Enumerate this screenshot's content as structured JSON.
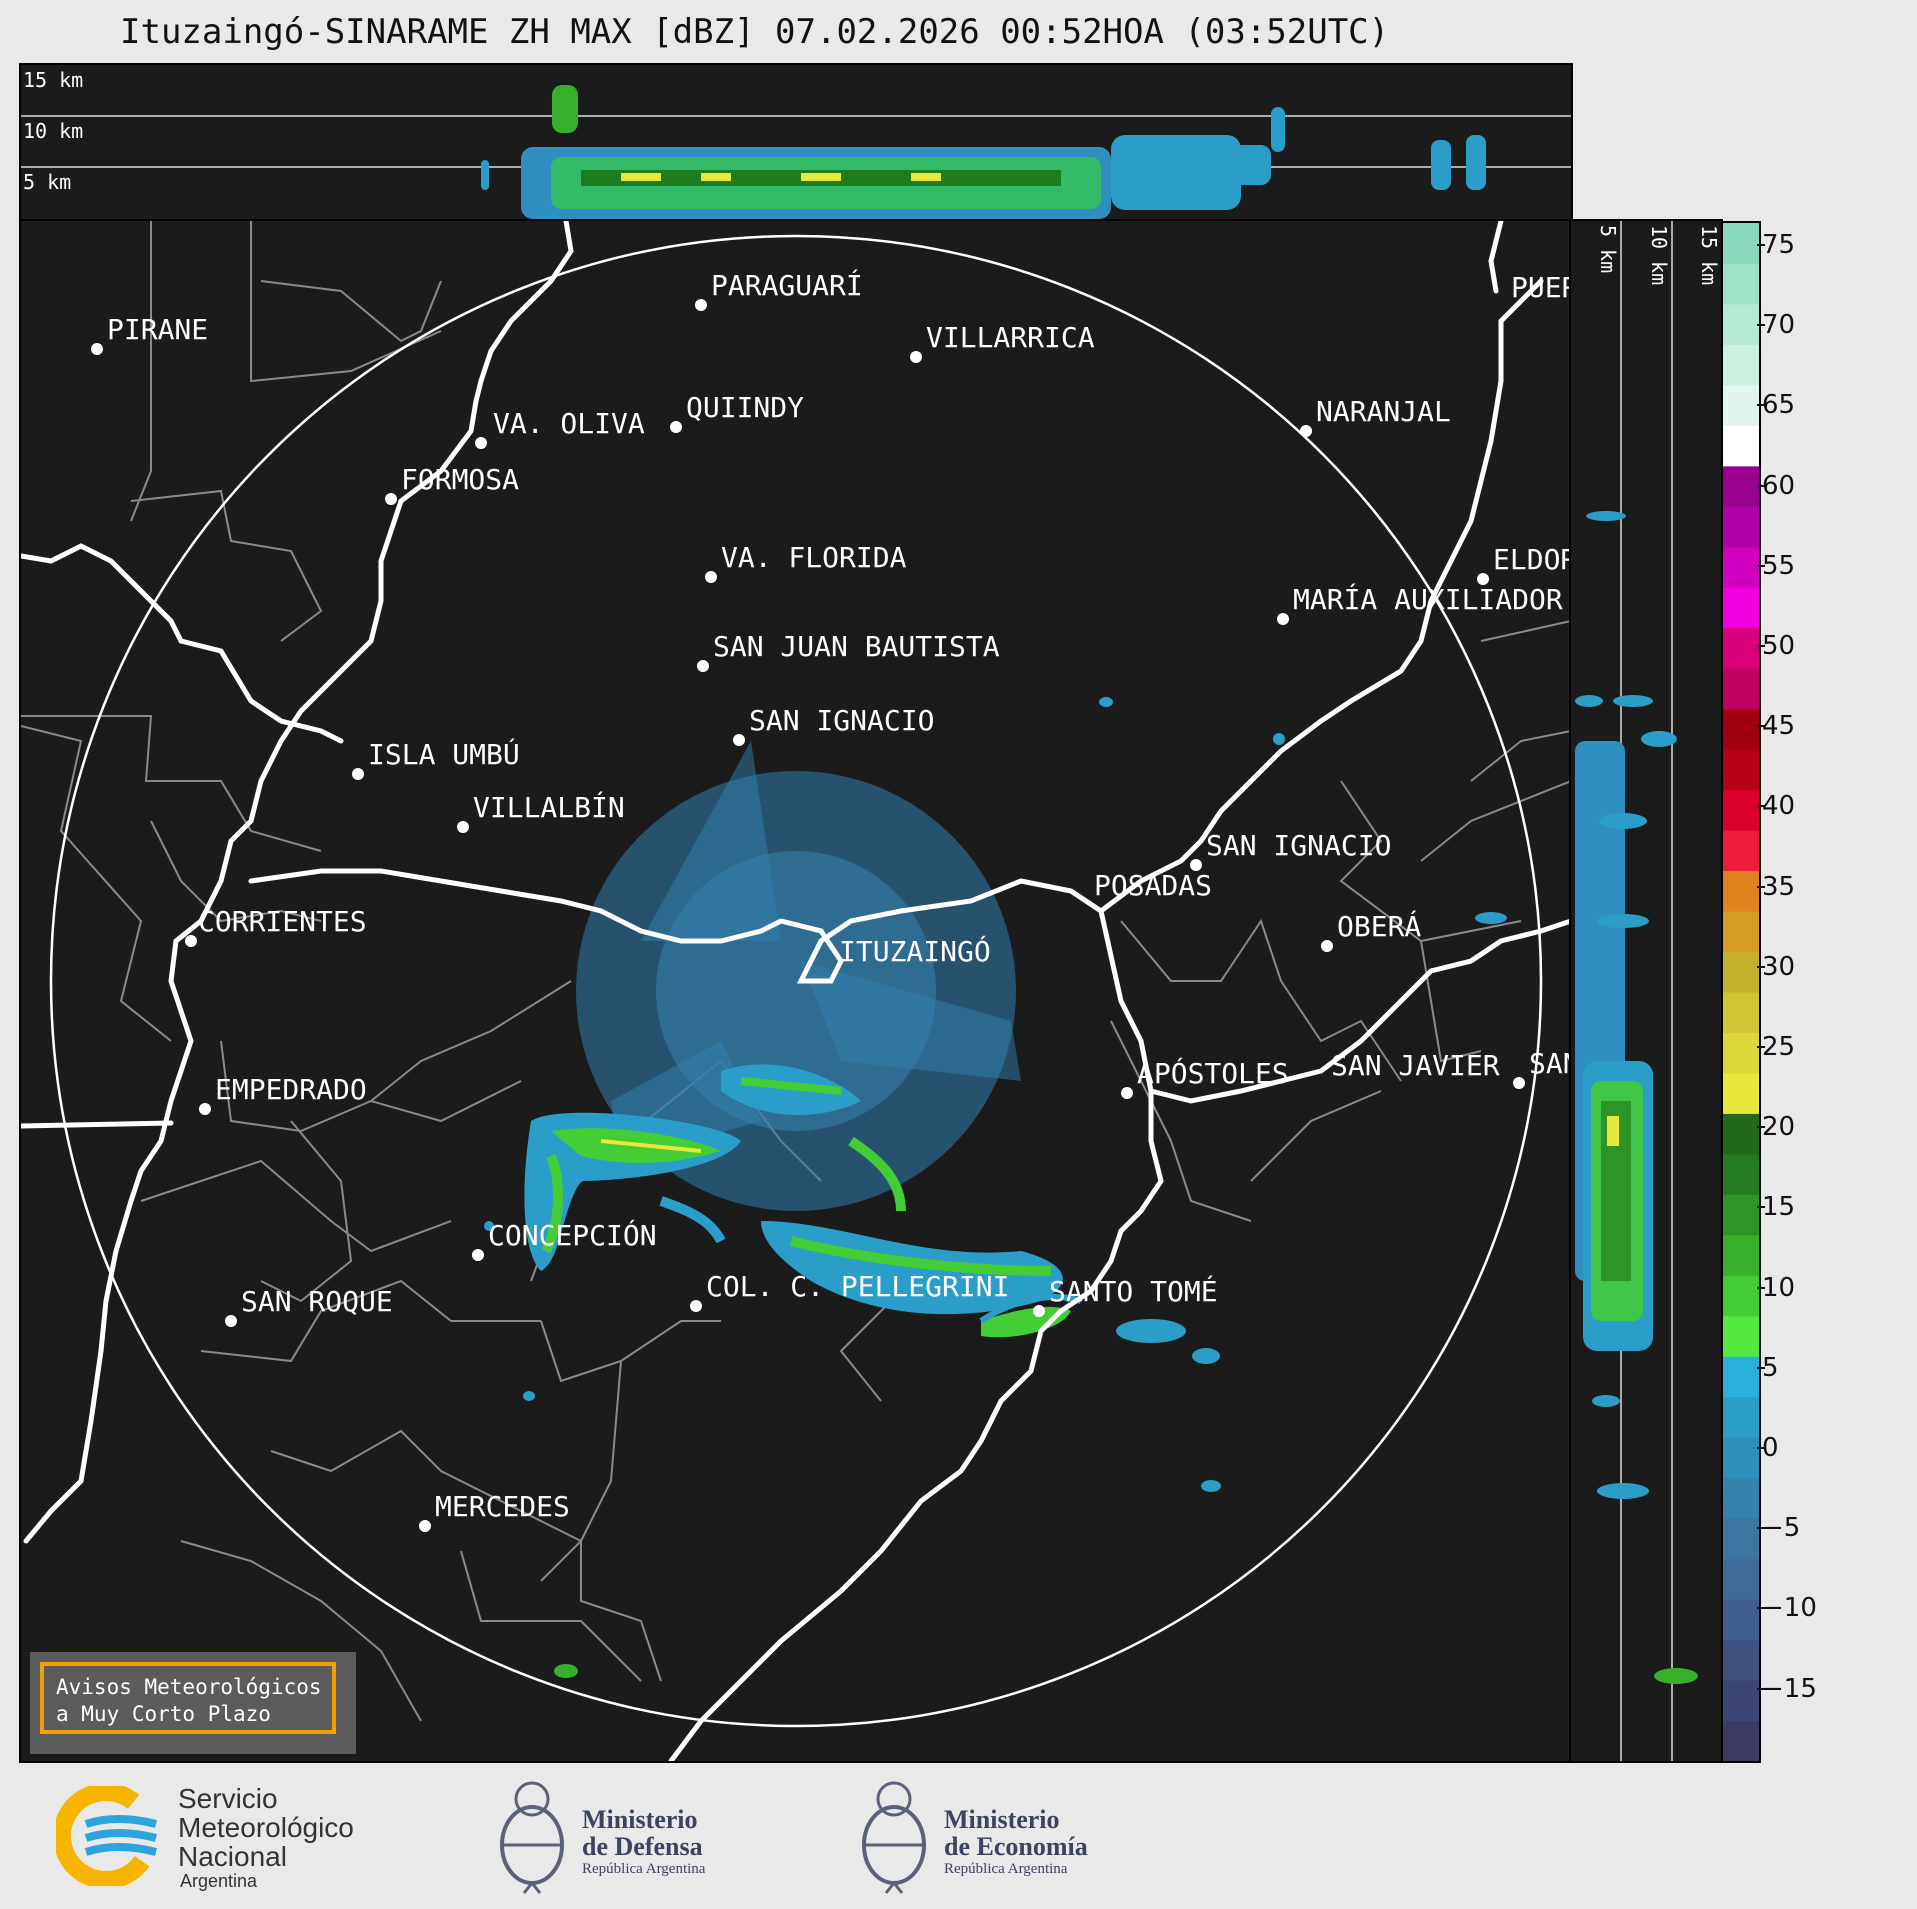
{
  "title": "Ituzaingó-SINARAME ZH MAX [dBZ] 07.02.2026 00:52HOA (03:52UTC)",
  "top_panel": {
    "height_labels": [
      "15 km",
      "10 km",
      "5 km"
    ]
  },
  "side_panel": {
    "height_labels": [
      "5 km",
      "10 km",
      "15 km"
    ]
  },
  "colorbar": {
    "ticks": [
      "75",
      "70",
      "65",
      "60",
      "55",
      "50",
      "45",
      "40",
      "35",
      "30",
      "25",
      "20",
      "15",
      "10",
      "5",
      "0",
      "−5",
      "−10",
      "−15"
    ],
    "colors": [
      "#3b3b66",
      "#3d4673",
      "#3f5180",
      "#405d8c",
      "#3f6a96",
      "#3a76a0",
      "#3483ae",
      "#2e90bb",
      "#2a9ec9",
      "#2bb0dc",
      "#55e840",
      "#43cc33",
      "#38b02c",
      "#2d9526",
      "#257c20",
      "#206a1a",
      "#e8e83a",
      "#ddd83a",
      "#cfc636",
      "#c6b030",
      "#d69a26",
      "#e0821e",
      "#ee1c3a",
      "#d8002a",
      "#b60018",
      "#a00010",
      "#c00060",
      "#d8007a",
      "#f000e0",
      "#d000c0",
      "#b000a8",
      "#9a0090",
      "#ffffff",
      "#e2f6ee",
      "#ccf0e0",
      "#b6ead4",
      "#a0e4c8",
      "#8ad8bc"
    ]
  },
  "cities": [
    {
      "name": "PARAGUARÍ"
    },
    {
      "name": "PIRANE"
    },
    {
      "name": "VILLARRICA"
    },
    {
      "name": "QUIINDY"
    },
    {
      "name": "VA. OLIVA"
    },
    {
      "name": "NARANJAL"
    },
    {
      "name": "FORMOSA"
    },
    {
      "name": "VA. FLORIDA"
    },
    {
      "name": "ELDOR"
    },
    {
      "name": "MARÍA AUXILIADOR"
    },
    {
      "name": "SAN JUAN BAUTISTA"
    },
    {
      "name": "SAN IGNACIO"
    },
    {
      "name": "ISLA UMBÚ"
    },
    {
      "name": "VILLALBÍN"
    },
    {
      "name": "SAN IGNACIO"
    },
    {
      "name": "POSADAS"
    },
    {
      "name": "CORRIENTES"
    },
    {
      "name": "ITUZAINGÓ"
    },
    {
      "name": "OBERÁ"
    },
    {
      "name": "EMPEDRADO"
    },
    {
      "name": "APÓSTOLES"
    },
    {
      "name": "SAN JAVIER"
    },
    {
      "name": "SAN"
    },
    {
      "name": "CONCEPCIÓN"
    },
    {
      "name": "COL. C. PELLEGRINI"
    },
    {
      "name": "SANTO TOMÉ"
    },
    {
      "name": "SAN ROQUE"
    },
    {
      "name": "MERCEDES"
    },
    {
      "name": "PUER"
    }
  ],
  "alert": {
    "line1": "Avisos Meteorológicos",
    "line2": "a Muy Corto Plazo"
  },
  "logos": {
    "smn": {
      "line1": "Servicio",
      "line2": "Meteorológico",
      "line3": "Nacional",
      "line4": "Argentina"
    },
    "defensa": {
      "line1": "Ministerio",
      "line2": "de Defensa",
      "line3": "República Argentina"
    },
    "economia": {
      "line1": "Ministerio",
      "line2": "de Economía",
      "line3": "República Argentina"
    }
  }
}
